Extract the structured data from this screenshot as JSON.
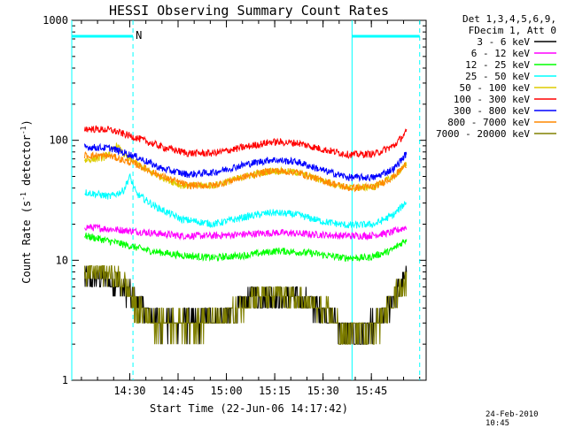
{
  "chart_data": {
    "type": "line",
    "title": "HESSI Observing Summary Count Rates",
    "xlabel": "Start Time (22-Jun-06 14:17:42)",
    "ylabel": "Count Rate (s",
    "ylabel_sup1": "-1",
    "ylabel_mid": " detector",
    "ylabel_sup2": "-1",
    "ylabel_end": ")",
    "y_scale": "log",
    "ylim": [
      1,
      1000
    ],
    "y_ticks": [
      {
        "value": 1,
        "label": "1"
      },
      {
        "value": 10,
        "label": "10"
      },
      {
        "value": 100,
        "label": "100"
      },
      {
        "value": 1000,
        "label": "1000"
      }
    ],
    "xlim_minutes": [
      -4,
      106
    ],
    "x_ticks": [
      {
        "minute": 14,
        "label": "14:30"
      },
      {
        "minute": 29,
        "label": "14:45"
      },
      {
        "minute": 44,
        "label": "15:00"
      },
      {
        "minute": 59,
        "label": "15:15"
      },
      {
        "minute": 74,
        "label": "15:30"
      },
      {
        "minute": 89,
        "label": "15:45"
      }
    ],
    "legend_header": [
      "Det 1,3,4,5,6,9,",
      "FDecim 1, Att 0"
    ],
    "legend_position": "right",
    "series": [
      {
        "name": "3 - 6 keV",
        "color": "#000000",
        "points": [
          [
            0,
            7
          ],
          [
            5,
            7
          ],
          [
            10,
            6.5
          ],
          [
            16,
            4.5
          ],
          [
            22,
            3
          ],
          [
            30,
            3
          ],
          [
            38,
            3
          ],
          [
            46,
            3.5
          ],
          [
            52,
            5
          ],
          [
            60,
            5
          ],
          [
            68,
            4.5
          ],
          [
            76,
            3.5
          ],
          [
            80,
            2.5
          ],
          [
            86,
            2.5
          ],
          [
            92,
            3
          ],
          [
            96,
            5
          ],
          [
            100,
            7
          ]
        ]
      },
      {
        "name": "6 - 12 keV",
        "color": "#ff00ff",
        "points": [
          [
            0,
            19
          ],
          [
            10,
            18
          ],
          [
            20,
            17
          ],
          [
            30,
            16
          ],
          [
            40,
            16
          ],
          [
            50,
            16.5
          ],
          [
            60,
            17
          ],
          [
            70,
            16.5
          ],
          [
            80,
            16
          ],
          [
            88,
            16
          ],
          [
            95,
            17
          ],
          [
            100,
            19
          ]
        ]
      },
      {
        "name": "12 - 25 keV",
        "color": "#00ff00",
        "points": [
          [
            0,
            16
          ],
          [
            10,
            14
          ],
          [
            20,
            12
          ],
          [
            30,
            11
          ],
          [
            40,
            10.5
          ],
          [
            50,
            11
          ],
          [
            60,
            12
          ],
          [
            70,
            11.5
          ],
          [
            80,
            10.5
          ],
          [
            88,
            10.5
          ],
          [
            95,
            12
          ],
          [
            100,
            15
          ]
        ]
      },
      {
        "name": "25 - 50 keV",
        "color": "#00ffff",
        "points": [
          [
            0,
            37
          ],
          [
            8,
            34
          ],
          [
            12,
            38
          ],
          [
            14,
            50
          ],
          [
            16,
            36
          ],
          [
            22,
            28
          ],
          [
            30,
            22
          ],
          [
            40,
            20
          ],
          [
            50,
            23
          ],
          [
            58,
            25
          ],
          [
            66,
            24
          ],
          [
            74,
            21
          ],
          [
            82,
            19.5
          ],
          [
            90,
            20
          ],
          [
            96,
            24
          ],
          [
            100,
            31
          ]
        ]
      },
      {
        "name": "50 - 100 keV",
        "color": "#ddcc00",
        "points": [
          [
            0,
            68
          ],
          [
            6,
            72
          ],
          [
            10,
            90
          ],
          [
            13,
            72
          ],
          [
            20,
            55
          ],
          [
            30,
            42
          ],
          [
            40,
            42
          ],
          [
            50,
            50
          ],
          [
            58,
            56
          ],
          [
            66,
            54
          ],
          [
            74,
            46
          ],
          [
            82,
            40
          ],
          [
            90,
            41
          ],
          [
            96,
            50
          ],
          [
            100,
            63
          ]
        ]
      },
      {
        "name": "100 - 300 keV",
        "color": "#ff0000",
        "points": [
          [
            0,
            125
          ],
          [
            8,
            122
          ],
          [
            16,
            105
          ],
          [
            24,
            88
          ],
          [
            32,
            78
          ],
          [
            40,
            78
          ],
          [
            50,
            88
          ],
          [
            58,
            97
          ],
          [
            66,
            95
          ],
          [
            74,
            84
          ],
          [
            82,
            76
          ],
          [
            90,
            77
          ],
          [
            96,
            90
          ],
          [
            100,
            118
          ]
        ]
      },
      {
        "name": "300 - 800 keV",
        "color": "#0000ff",
        "points": [
          [
            0,
            88
          ],
          [
            8,
            86
          ],
          [
            16,
            73
          ],
          [
            24,
            58
          ],
          [
            32,
            52
          ],
          [
            40,
            54
          ],
          [
            50,
            63
          ],
          [
            58,
            69
          ],
          [
            66,
            66
          ],
          [
            74,
            56
          ],
          [
            82,
            49
          ],
          [
            90,
            49
          ],
          [
            96,
            58
          ],
          [
            100,
            78
          ]
        ]
      },
      {
        "name": "800 - 7000 keV",
        "color": "#ff8800",
        "points": [
          [
            0,
            75
          ],
          [
            8,
            74
          ],
          [
            16,
            63
          ],
          [
            24,
            50
          ],
          [
            32,
            42
          ],
          [
            40,
            42
          ],
          [
            50,
            50
          ],
          [
            58,
            56
          ],
          [
            66,
            54
          ],
          [
            74,
            46
          ],
          [
            82,
            40
          ],
          [
            90,
            41
          ],
          [
            96,
            50
          ],
          [
            100,
            64
          ]
        ]
      },
      {
        "name": "7000 - 20000 keV",
        "color": "#808000",
        "points": [
          [
            0,
            8
          ],
          [
            6,
            8
          ],
          [
            12,
            6.5
          ],
          [
            16,
            4
          ],
          [
            22,
            3
          ],
          [
            30,
            3
          ],
          [
            38,
            3
          ],
          [
            46,
            3.5
          ],
          [
            52,
            5
          ],
          [
            60,
            5
          ],
          [
            68,
            4.5
          ],
          [
            76,
            3.5
          ],
          [
            80,
            2.5
          ],
          [
            86,
            2.5
          ],
          [
            92,
            3
          ],
          [
            96,
            5
          ],
          [
            100,
            7
          ]
        ]
      }
    ],
    "annotations": [
      {
        "text": "N",
        "minute": 15
      }
    ],
    "bars": [
      {
        "name": "top-left-flag-bar",
        "from": -4,
        "to": 15,
        "color": "#00ffff"
      },
      {
        "name": "top-right-flag-bar",
        "from": 83,
        "to": 104,
        "color": "#00ffff"
      }
    ],
    "vlines": [
      {
        "minute": 15,
        "style": "dashed",
        "color": "#00ffff"
      },
      {
        "minute": 83,
        "style": "solid",
        "color": "#00ffff"
      },
      {
        "minute": 104,
        "style": "dashed",
        "color": "#00ffff"
      },
      {
        "minute": -4,
        "style": "solid",
        "color": "#00ffff"
      }
    ]
  },
  "footer": {
    "timestamp": "24-Feb-2010 10:45"
  }
}
